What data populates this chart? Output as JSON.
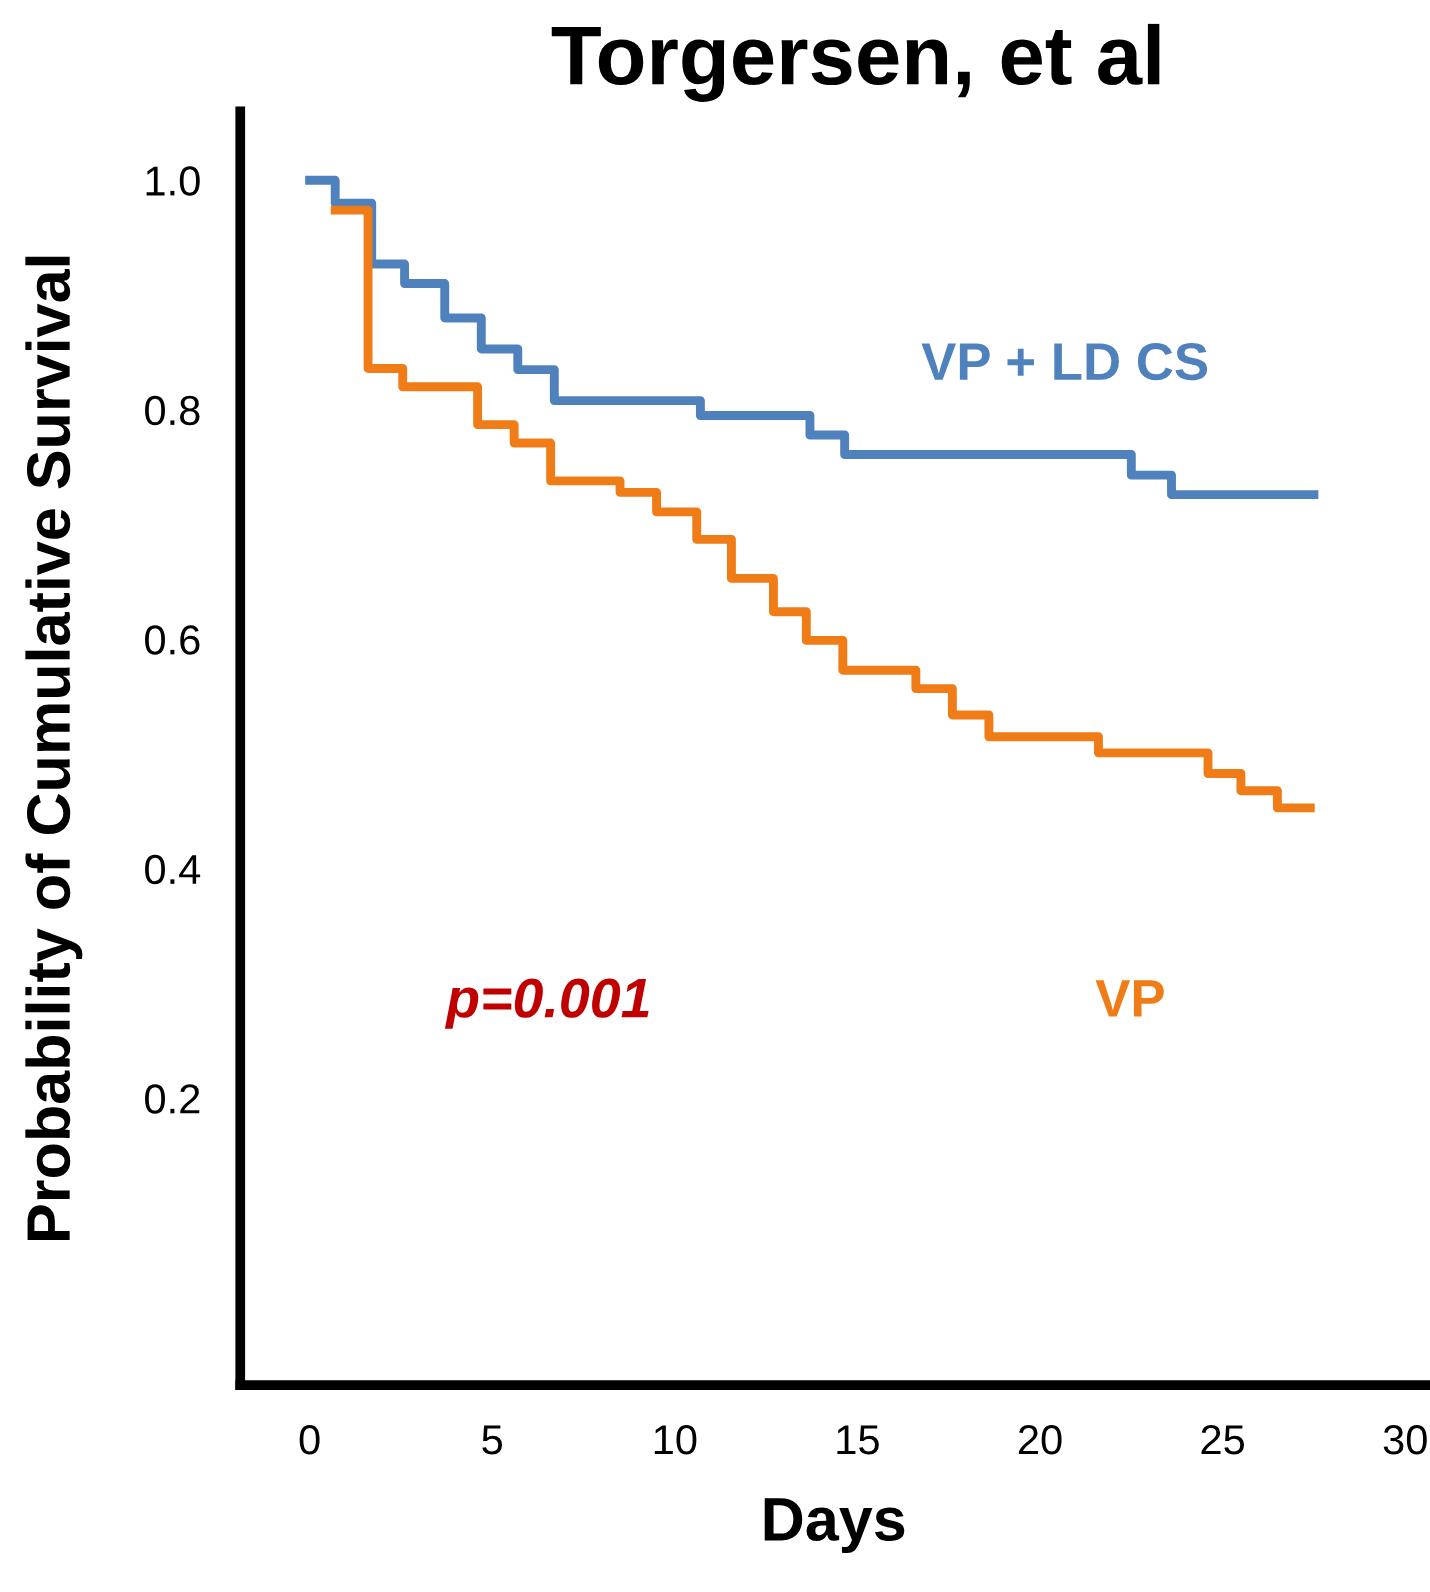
{
  "chart_data": {
    "type": "step",
    "title": "Torgersen, et al",
    "xlabel": "Days",
    "ylabel": "Probability of Cumulative Survival",
    "series": [
      {
        "name": "VP + LD CS",
        "color": "#4f81bd",
        "x": [
          0,
          0.7,
          1.7,
          2.6,
          3.7,
          4.7,
          5.7,
          6.7,
          10.7,
          13.7,
          14.65,
          22.5,
          23.6,
          27.5
        ],
        "values": [
          1.0,
          0.98,
          0.927,
          0.91,
          0.88,
          0.853,
          0.835,
          0.808,
          0.795,
          0.778,
          0.761,
          0.743,
          0.726,
          0.726
        ]
      },
      {
        "name": "VP",
        "color": "#f07c18",
        "x": [
          0.7,
          1.6,
          2.55,
          4.6,
          5.6,
          6.6,
          8.5,
          9.5,
          10.6,
          11.55,
          12.7,
          13.6,
          14.6,
          16.6,
          17.6,
          18.6,
          21.6,
          24.6,
          25.5,
          26.5,
          27.4
        ],
        "values": [
          0.974,
          0.836,
          0.82,
          0.787,
          0.771,
          0.738,
          0.728,
          0.711,
          0.687,
          0.653,
          0.624,
          0.599,
          0.573,
          0.557,
          0.534,
          0.515,
          0.501,
          0.483,
          0.468,
          0.453,
          0.453
        ]
      }
    ],
    "annotations": [
      "p=0.001"
    ],
    "xlim": [
      -1.9,
      30.6
    ],
    "ylim": [
      -0.05,
      1.06
    ],
    "xticks": [
      0,
      5,
      10,
      15,
      20,
      25,
      30
    ],
    "yticks": [
      {
        "value": 0.2,
        "label": "0.2"
      },
      {
        "value": 0.4,
        "label": "0.4"
      },
      {
        "value": 0.6,
        "label": "0.6"
      },
      {
        "value": 0.8,
        "label": "0.8"
      },
      {
        "value": 1.0,
        "label": "1.0"
      }
    ],
    "grid": false,
    "legend": false,
    "line_style": "solid",
    "marker": "none"
  }
}
